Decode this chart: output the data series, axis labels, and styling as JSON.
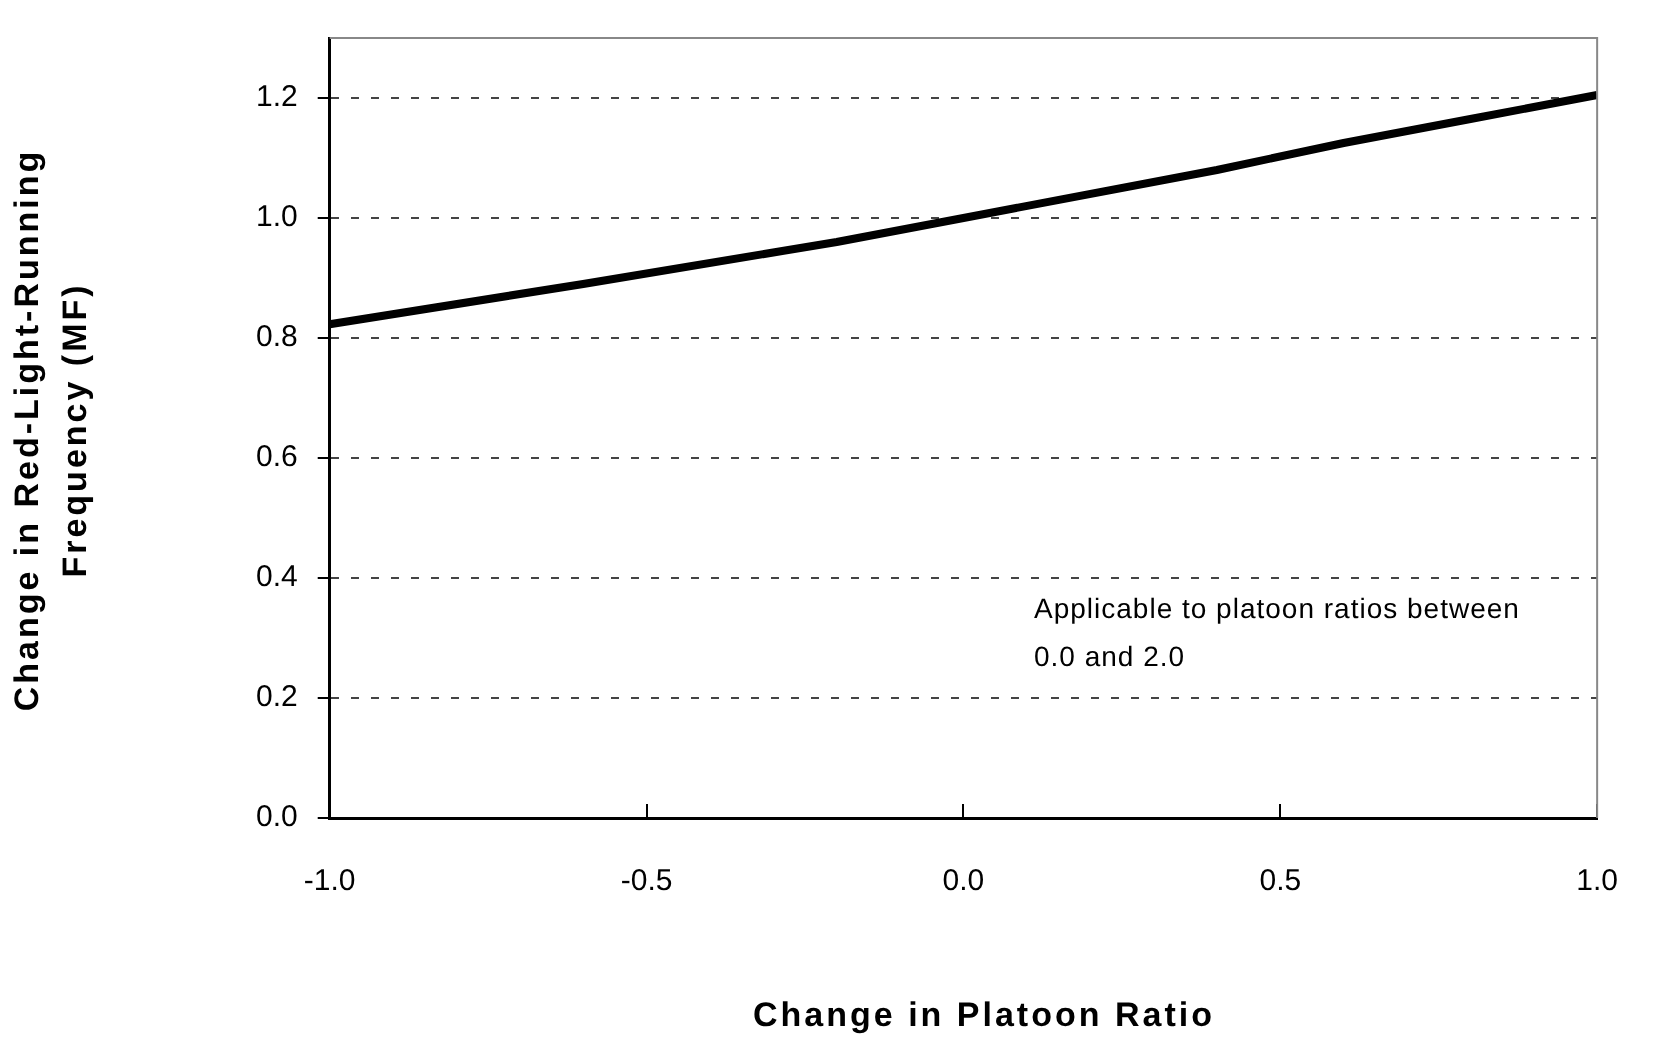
{
  "chart_data": {
    "type": "line",
    "xlabel": "Change in Platoon Ratio",
    "ylabel": "Change in Red-Light-Running Frequency (MF)",
    "x": [
      -1.0,
      -0.6,
      -0.2,
      0.0,
      0.4,
      0.6,
      0.8,
      1.0
    ],
    "series": [
      {
        "color": "#000000",
        "values": [
          0.823,
          0.89,
          0.96,
          1.0,
          1.08,
          1.125,
          1.165,
          1.205
        ]
      }
    ],
    "xlim": [
      -1.0,
      1.0
    ],
    "xticks": [
      {
        "value": -1,
        "label": "-1.0"
      },
      {
        "value": -0.5,
        "label": "-0.5"
      },
      {
        "value": 0,
        "label": "0.0"
      },
      {
        "value": 0.5,
        "label": "0.5"
      },
      {
        "value": 1,
        "label": "1.0"
      }
    ],
    "ylim": [
      0,
      1.3
    ],
    "yticks": [
      {
        "value": 0,
        "label": "0.0"
      },
      {
        "value": 0.2,
        "label": "0.2"
      },
      {
        "value": 0.4,
        "label": "0.4"
      },
      {
        "value": 0.6,
        "label": "0.6"
      },
      {
        "value": 0.8,
        "label": "0.8"
      },
      {
        "value": 1.0,
        "label": "1.0"
      },
      {
        "value": 1.2,
        "label": "1.2"
      }
    ],
    "grid": "y",
    "legend": false,
    "marker": "none",
    "line_style": "solid",
    "annotations": [
      "Applicable to platoon ratios between 0.0 and 2.0"
    ]
  }
}
